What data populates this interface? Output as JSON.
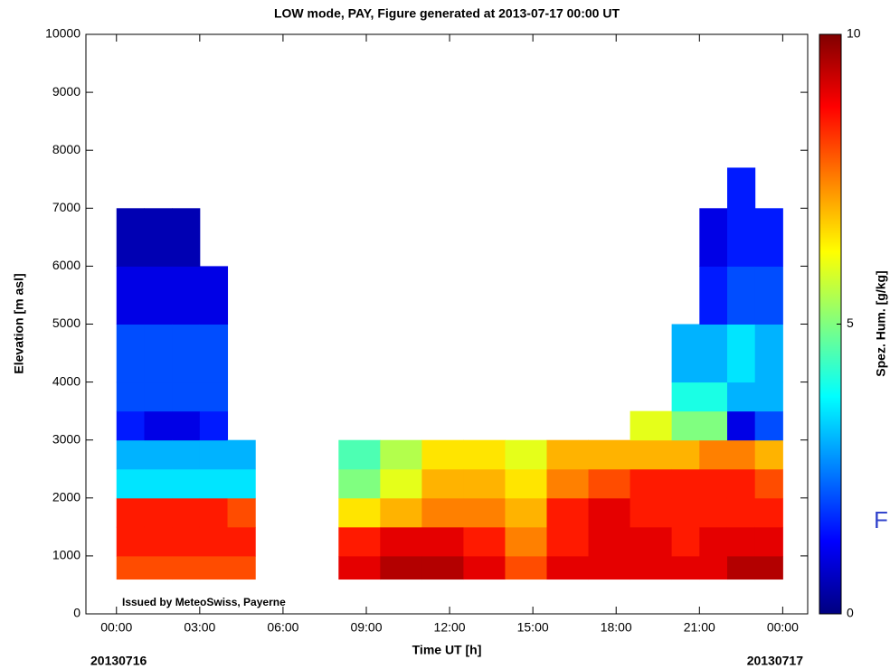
{
  "chart_data": {
    "type": "heatmap",
    "title": "LOW mode, PAY, Figure generated at 2013-07-17 00:00 UT",
    "x_label": "Time UT [h]",
    "y_label": "Elevation [m asl]",
    "colorbar_label": "Spez. Hum. [g/kg]",
    "annotations": [
      "Issued by MeteoSwiss, Payerne",
      "20130716",
      "20130717",
      "F"
    ],
    "colormap": "jet",
    "clim": [
      0,
      10
    ],
    "cticks": [
      0,
      5,
      10
    ],
    "xlim": [
      -1.1,
      24.9
    ],
    "ylim": [
      0,
      10000
    ],
    "xticks": [
      {
        "value": 0,
        "label": "00:00"
      },
      {
        "value": 3,
        "label": "03:00"
      },
      {
        "value": 6,
        "label": "06:00"
      },
      {
        "value": 9,
        "label": "09:00"
      },
      {
        "value": 12,
        "label": "12:00"
      },
      {
        "value": 15,
        "label": "15:00"
      },
      {
        "value": 18,
        "label": "18:00"
      },
      {
        "value": 21,
        "label": "21:00"
      },
      {
        "value": 24,
        "label": "00:00"
      }
    ],
    "yticks": [
      0,
      1000,
      2000,
      3000,
      4000,
      5000,
      6000,
      7000,
      8000,
      9000,
      10000
    ],
    "x_edges": [
      0,
      1,
      2,
      3,
      4,
      5,
      8,
      9.5,
      11,
      12.5,
      14,
      15.5,
      17,
      18.5,
      20,
      21,
      22,
      23,
      24
    ],
    "y_edges": [
      600,
      1000,
      1500,
      2000,
      2500,
      3000,
      3500,
      4000,
      5000,
      6000,
      7000,
      7700
    ],
    "values": [
      [
        8,
        8.5,
        8.5,
        3.5,
        3,
        1.5,
        2,
        2,
        1,
        0.5,
        null
      ],
      [
        8,
        8.5,
        8.5,
        3.5,
        3,
        1,
        2,
        2,
        1,
        0.5,
        null
      ],
      [
        8,
        8.5,
        8.5,
        3.5,
        3,
        1,
        2,
        2,
        1,
        0.5,
        null
      ],
      [
        8,
        8.5,
        8.5,
        3.5,
        3,
        1.5,
        2,
        2,
        1,
        null,
        null
      ],
      [
        8,
        8.5,
        8,
        3.5,
        3,
        null,
        null,
        null,
        null,
        null,
        null
      ],
      [
        null,
        null,
        null,
        null,
        null,
        null,
        null,
        null,
        null,
        null,
        null
      ],
      [
        9,
        8.5,
        6.5,
        5,
        4.5,
        null,
        null,
        null,
        null,
        null,
        null
      ],
      [
        9.5,
        9,
        7,
        6,
        5.5,
        null,
        null,
        null,
        null,
        null,
        null
      ],
      [
        9.5,
        9,
        7.5,
        7,
        6.5,
        null,
        null,
        null,
        null,
        null,
        null
      ],
      [
        9,
        8.5,
        7.5,
        7,
        6.5,
        null,
        null,
        null,
        null,
        null,
        null
      ],
      [
        8,
        7.5,
        7,
        6.5,
        6,
        null,
        null,
        null,
        null,
        null,
        null
      ],
      [
        9,
        8.5,
        8.5,
        7.5,
        7,
        null,
        null,
        null,
        null,
        null,
        null
      ],
      [
        9,
        9,
        9,
        8,
        7,
        null,
        null,
        null,
        null,
        null,
        null
      ],
      [
        9,
        9,
        8.5,
        8.5,
        7,
        6,
        null,
        null,
        null,
        null,
        null
      ],
      [
        9,
        8.5,
        8.5,
        8.5,
        7,
        5,
        4,
        3,
        null,
        null,
        null
      ],
      [
        9,
        9,
        8.5,
        8.5,
        7.5,
        5,
        4,
        3,
        1.5,
        1,
        null
      ],
      [
        9.5,
        9,
        8.5,
        8.5,
        7.5,
        1,
        3,
        3.5,
        2,
        1.5,
        1.5
      ],
      [
        9.5,
        9,
        8.5,
        8,
        7,
        2,
        3,
        3,
        2,
        1.5,
        null
      ]
    ]
  }
}
